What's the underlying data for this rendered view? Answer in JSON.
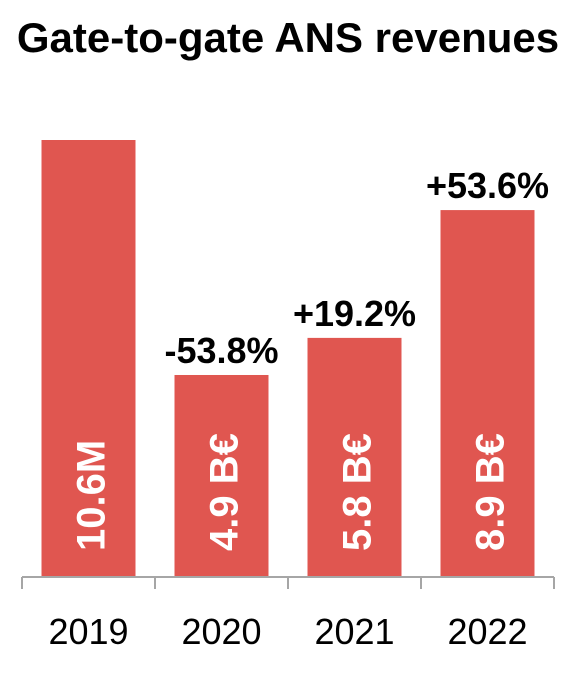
{
  "chart_data": {
    "type": "bar",
    "title": "Gate-to-gate ANS revenues",
    "categories": [
      "2019",
      "2020",
      "2021",
      "2022"
    ],
    "values": [
      10.6,
      4.9,
      5.8,
      8.9
    ],
    "bar_labels": [
      "10.6M",
      "4.9 B€",
      "5.8 B€",
      "8.9 B€"
    ],
    "change_labels": [
      "",
      "-53.8%",
      "+19.2%",
      "+53.6%"
    ],
    "ylim": [
      0,
      10.6
    ],
    "xlabel": "",
    "ylabel": "",
    "grid": false,
    "legend": "none",
    "colors": {
      "bar": "#e05650",
      "axis": "#a6a6a6",
      "text": "#000000",
      "bar_label": "#ffffff"
    }
  }
}
